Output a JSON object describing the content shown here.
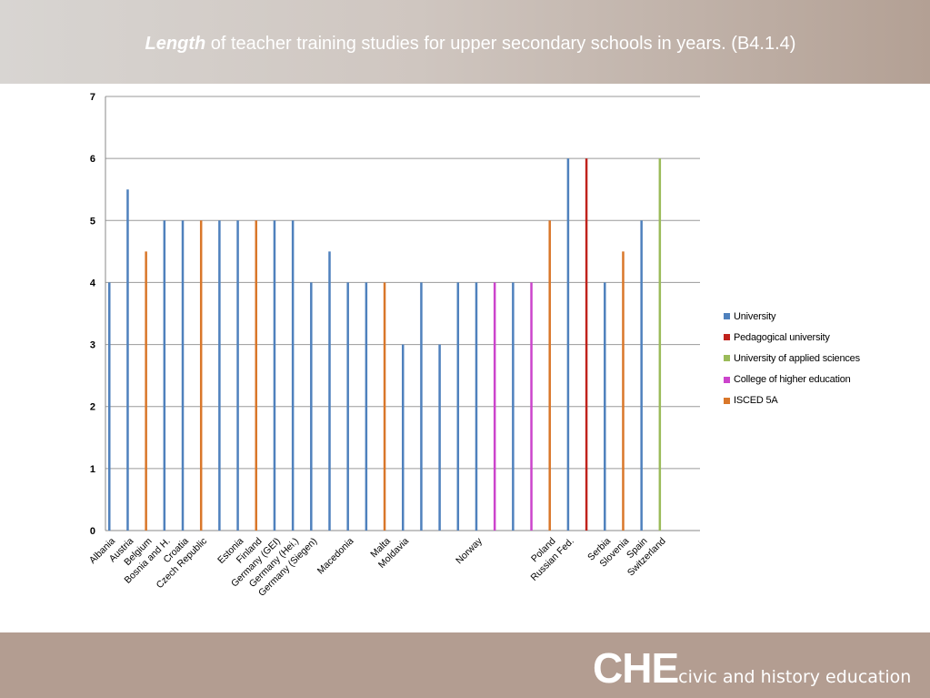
{
  "header": {
    "title_emphasis": "Length",
    "title_rest": " of teacher training studies for upper secondary schools in years. (B4.1.4)"
  },
  "footer": {
    "logo_big": "CHE",
    "logo_small": "civic and history education"
  },
  "colors": {
    "University": "#4f81bd",
    "Pedagogical university": "#c0221c",
    "University of applied sciences": "#9bbb59",
    "College of higher education": "#cc44cc",
    "ISCED 5A": "#d9772a"
  },
  "chart_data": {
    "type": "bar",
    "ylim": [
      0,
      7
    ],
    "yticks": [
      0,
      1,
      2,
      3,
      4,
      5,
      6,
      7
    ],
    "grid": true,
    "legend_position": "right",
    "series": [
      {
        "name": "University"
      },
      {
        "name": "Pedagogical university"
      },
      {
        "name": "University of applied sciences"
      },
      {
        "name": "College of higher education"
      },
      {
        "name": "ISCED 5A"
      }
    ],
    "categories": [
      "Albania",
      "Austria",
      "Belgium",
      "Bosnia and H.",
      "Croatia",
      "Czech Republic",
      "Estonia",
      "Finland",
      "Germany (GEI)",
      "Germany (Hei.)",
      "Germany (Siegen)",
      "Macedonia",
      "Malta",
      "Moldavia",
      "Norway",
      "Poland",
      "Russian Fed.",
      "Serbia",
      "Slovenia",
      "Spain",
      "Switzerland"
    ],
    "bars": [
      {
        "category": "Albania",
        "series": "University",
        "value": 4
      },
      {
        "category": "Austria",
        "series": "University",
        "value": 5.5
      },
      {
        "category": "Belgium",
        "series": "ISCED 5A",
        "value": 4.5
      },
      {
        "category": "Bosnia and H.",
        "series": "University",
        "value": 5
      },
      {
        "category": "Croatia",
        "series": "University",
        "value": 5
      },
      {
        "category": "Czech Republic",
        "series": "ISCED 5A",
        "value": 5
      },
      {
        "category": "Czech Republic",
        "series": "University",
        "value": 5
      },
      {
        "category": "Estonia",
        "series": "University",
        "value": 5
      },
      {
        "category": "Finland",
        "series": "ISCED 5A",
        "value": 5
      },
      {
        "category": "Germany (GEI)",
        "series": "University",
        "value": 5
      },
      {
        "category": "Germany (Hei.)",
        "series": "University",
        "value": 5
      },
      {
        "category": "Germany (Siegen)",
        "series": "University",
        "value": 4
      },
      {
        "category": "Germany (Siegen)",
        "series": "University",
        "value": 4.5
      },
      {
        "category": "Macedonia",
        "series": "University",
        "value": 4
      },
      {
        "category": "Macedonia",
        "series": "University",
        "value": 4
      },
      {
        "category": "Malta",
        "series": "ISCED 5A",
        "value": 4
      },
      {
        "category": "Moldavia",
        "series": "University",
        "value": 3
      },
      {
        "category": "Moldavia",
        "series": "University",
        "value": 4
      },
      {
        "category": "Moldavia",
        "series": "University",
        "value": 3
      },
      {
        "category": "Moldavia",
        "series": "University",
        "value": 4
      },
      {
        "category": "Norway",
        "series": "University",
        "value": 4
      },
      {
        "category": "Norway",
        "series": "College of higher education",
        "value": 4
      },
      {
        "category": "Norway",
        "series": "University",
        "value": 4
      },
      {
        "category": "Norway",
        "series": "College of higher education",
        "value": 4
      },
      {
        "category": "Poland",
        "series": "ISCED 5A",
        "value": 5
      },
      {
        "category": "Russian Fed.",
        "series": "University",
        "value": 6
      },
      {
        "category": "Russian Fed.",
        "series": "Pedagogical university",
        "value": 6
      },
      {
        "category": "Serbia",
        "series": "University",
        "value": 4
      },
      {
        "category": "Slovenia",
        "series": "ISCED 5A",
        "value": 4.5
      },
      {
        "category": "Spain",
        "series": "University",
        "value": 5
      },
      {
        "category": "Switzerland",
        "series": "University of applied sciences",
        "value": 6
      }
    ]
  }
}
